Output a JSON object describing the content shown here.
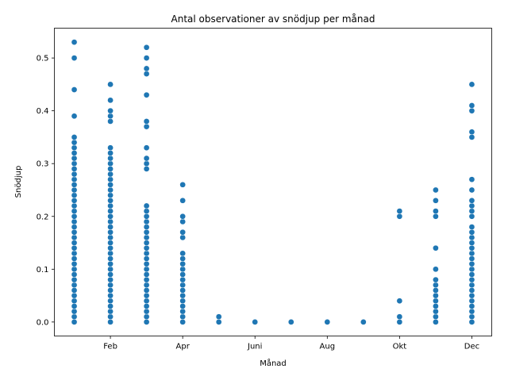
{
  "chart_data": {
    "type": "scatter",
    "title": "Antal observationer av snödjup per månad",
    "xlabel": "Månad",
    "ylabel": "Snödjup",
    "x_ticks": [
      {
        "month": 2,
        "label": "Feb"
      },
      {
        "month": 4,
        "label": "Apr"
      },
      {
        "month": 6,
        "label": "Juni"
      },
      {
        "month": 8,
        "label": "Aug"
      },
      {
        "month": 10,
        "label": "Okt"
      },
      {
        "month": 12,
        "label": "Dec"
      }
    ],
    "xlim": [
      0.45,
      12.55
    ],
    "ylim": [
      -0.0265,
      0.5565
    ],
    "y_ticks": [
      0.0,
      0.1,
      0.2,
      0.3,
      0.4,
      0.5
    ],
    "grid": false,
    "marker_color": "#1f77b4",
    "series": [
      {
        "points": [
          {
            "month": 1,
            "values": [
              0.0,
              0.01,
              0.02,
              0.03,
              0.04,
              0.05,
              0.06,
              0.07,
              0.08,
              0.09,
              0.1,
              0.11,
              0.12,
              0.13,
              0.14,
              0.15,
              0.16,
              0.17,
              0.18,
              0.19,
              0.2,
              0.21,
              0.22,
              0.23,
              0.24,
              0.25,
              0.26,
              0.27,
              0.28,
              0.29,
              0.3,
              0.31,
              0.32,
              0.33,
              0.34,
              0.35,
              0.39,
              0.44,
              0.5,
              0.53
            ]
          },
          {
            "month": 2,
            "values": [
              0.0,
              0.01,
              0.02,
              0.03,
              0.04,
              0.05,
              0.06,
              0.07,
              0.08,
              0.09,
              0.1,
              0.11,
              0.12,
              0.13,
              0.14,
              0.15,
              0.16,
              0.17,
              0.18,
              0.19,
              0.2,
              0.21,
              0.22,
              0.23,
              0.24,
              0.25,
              0.26,
              0.27,
              0.28,
              0.29,
              0.3,
              0.31,
              0.32,
              0.33,
              0.38,
              0.39,
              0.4,
              0.42,
              0.45
            ]
          },
          {
            "month": 3,
            "values": [
              0.0,
              0.01,
              0.02,
              0.03,
              0.04,
              0.05,
              0.06,
              0.07,
              0.08,
              0.09,
              0.1,
              0.11,
              0.12,
              0.13,
              0.14,
              0.15,
              0.16,
              0.17,
              0.18,
              0.19,
              0.2,
              0.21,
              0.22,
              0.29,
              0.3,
              0.31,
              0.33,
              0.37,
              0.38,
              0.43,
              0.47,
              0.48,
              0.5,
              0.52
            ]
          },
          {
            "month": 4,
            "values": [
              0.0,
              0.01,
              0.02,
              0.03,
              0.04,
              0.05,
              0.06,
              0.07,
              0.08,
              0.09,
              0.1,
              0.11,
              0.12,
              0.13,
              0.16,
              0.17,
              0.19,
              0.2,
              0.23,
              0.26
            ]
          },
          {
            "month": 5,
            "values": [
              0.0,
              0.01
            ]
          },
          {
            "month": 6,
            "values": [
              0.0
            ]
          },
          {
            "month": 7,
            "values": [
              0.0
            ]
          },
          {
            "month": 8,
            "values": [
              0.0
            ]
          },
          {
            "month": 9,
            "values": [
              0.0
            ]
          },
          {
            "month": 10,
            "values": [
              0.0,
              0.01,
              0.04,
              0.2,
              0.21
            ]
          },
          {
            "month": 11,
            "values": [
              0.0,
              0.01,
              0.02,
              0.03,
              0.04,
              0.05,
              0.06,
              0.07,
              0.08,
              0.1,
              0.14,
              0.2,
              0.21,
              0.23,
              0.25
            ]
          },
          {
            "month": 12,
            "values": [
              0.0,
              0.01,
              0.02,
              0.03,
              0.04,
              0.05,
              0.06,
              0.07,
              0.08,
              0.09,
              0.1,
              0.11,
              0.12,
              0.13,
              0.14,
              0.15,
              0.16,
              0.17,
              0.18,
              0.2,
              0.21,
              0.22,
              0.23,
              0.25,
              0.27,
              0.35,
              0.36,
              0.4,
              0.41,
              0.45
            ]
          }
        ]
      }
    ]
  }
}
